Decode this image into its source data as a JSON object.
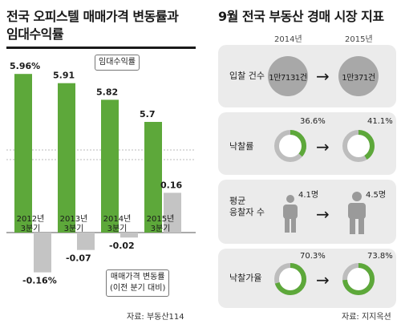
{
  "left": {
    "title_line1": "전국 오피스텔 매매가격 변동률과",
    "title_line2": "임대수익률",
    "legend_rental": "임대수익률",
    "legend_price_line1": "매매가격 변동률",
    "legend_price_line2": "(이전 분기 대비)",
    "source": "자료: 부동산114",
    "colors": {
      "rental": "#5da83a",
      "price": "#c4c4c4"
    }
  },
  "chart_data": {
    "type": "bar",
    "categories": [
      [
        "2012년",
        "3분기"
      ],
      [
        "2013년",
        "3분기"
      ],
      [
        "2014년",
        "3분기"
      ],
      [
        "2015년",
        "3분기"
      ]
    ],
    "series": [
      {
        "name": "임대수익률",
        "values": [
          5.96,
          5.91,
          5.82,
          5.7
        ],
        "labels": [
          "5.96%",
          "5.91",
          "5.82",
          "5.7"
        ]
      },
      {
        "name": "매매가격 변동률 (이전 분기 대비)",
        "values": [
          -0.16,
          -0.07,
          -0.02,
          0.16
        ],
        "labels": [
          "-0.16%",
          "-0.07",
          "-0.02",
          "0.16"
        ]
      }
    ]
  },
  "right": {
    "title": "9월 전국 부동산 경매 시장 지표",
    "years": [
      "2014년",
      "2015년"
    ],
    "bid_count": {
      "label": "입찰 건수",
      "v2014": "1만7131건",
      "v2015": "1만371건"
    },
    "sale_rate": {
      "label": "낙찰률",
      "v2014": "36.6%",
      "v2015": "41.1%",
      "p2014": 36.6,
      "p2015": 41.1
    },
    "avg_bidders": {
      "label_line1": "평균",
      "label_line2": "응찰자 수",
      "v2014": "4.1명",
      "v2015": "4.5명"
    },
    "price_rate": {
      "label": "낙찰가율",
      "v2014": "70.3%",
      "v2015": "73.8%",
      "p2014": 70.3,
      "p2015": 73.8
    },
    "arrow": "→",
    "source": "자료: 지지옥션",
    "colors": {
      "ring_fill": "#5da83a",
      "ring_track": "#bdbdbd",
      "person": "#9a9a9a"
    }
  }
}
